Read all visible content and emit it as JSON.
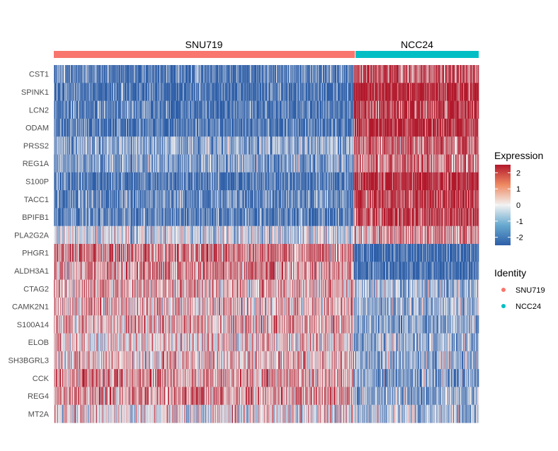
{
  "chart_data": {
    "type": "heatmap",
    "title": "",
    "xlabel": "",
    "ylabel": "",
    "genes": [
      "CST1",
      "SPINK1",
      "LCN2",
      "ODAM",
      "PRSS2",
      "REG1A",
      "S100P",
      "TACC1",
      "BPIFB1",
      "PLA2G2A",
      "PHGR1",
      "ALDH3A1",
      "CTAG2",
      "CAMK2N1",
      "S100A14",
      "ELOB",
      "SH3BGRL3",
      "CCK",
      "REG4",
      "MT2A"
    ],
    "groups": [
      {
        "name": "SNU719",
        "color": "#F8766D",
        "cells": 424
      },
      {
        "name": "NCC24",
        "color": "#00BFC4",
        "cells": 176
      }
    ],
    "mean_expression": {
      "SNU719": [
        -1.8,
        -2.0,
        -1.9,
        -1.9,
        -1.0,
        -1.2,
        -2.0,
        -1.6,
        -1.7,
        -0.4,
        1.2,
        1.0,
        0.7,
        0.6,
        0.8,
        0.3,
        0.6,
        0.9,
        0.9,
        0.1
      ],
      "NCC24": [
        1.6,
        2.4,
        2.0,
        2.1,
        1.4,
        1.3,
        2.3,
        1.9,
        1.9,
        0.9,
        -2.2,
        -2.1,
        -0.8,
        -0.8,
        -1.1,
        -1.0,
        -0.9,
        -1.1,
        -1.0,
        -0.7
      ]
    },
    "color_scale": {
      "title": "Expression",
      "ticks": [
        2,
        1,
        0,
        -1,
        -2
      ],
      "range": [
        -2.5,
        2.5
      ],
      "low": "#2D5EA8",
      "mid": "#F2F2F2",
      "high": "#B2182B"
    },
    "identity_legend": {
      "title": "Identity",
      "items": [
        {
          "label": "SNU719",
          "color": "#F8766D"
        },
        {
          "label": "NCC24",
          "color": "#00BFC4"
        }
      ]
    },
    "legend_position": "right"
  }
}
